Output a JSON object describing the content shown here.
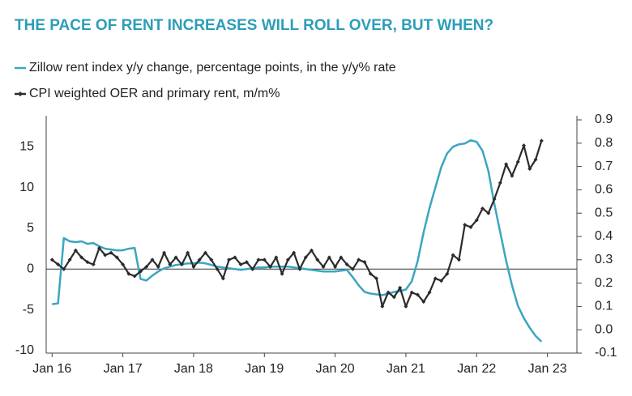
{
  "chart_data": {
    "type": "line",
    "title": "THE PACE OF RENT INCREASES WILL ROLL OVER, BUT WHEN?",
    "x": [
      "2016-01",
      "2016-02",
      "2016-03",
      "2016-04",
      "2016-05",
      "2016-06",
      "2016-07",
      "2016-08",
      "2016-09",
      "2016-10",
      "2016-11",
      "2016-12",
      "2017-01",
      "2017-02",
      "2017-03",
      "2017-04",
      "2017-05",
      "2017-06",
      "2017-07",
      "2017-08",
      "2017-09",
      "2017-10",
      "2017-11",
      "2017-12",
      "2018-01",
      "2018-02",
      "2018-03",
      "2018-04",
      "2018-05",
      "2018-06",
      "2018-07",
      "2018-08",
      "2018-09",
      "2018-10",
      "2018-11",
      "2018-12",
      "2019-01",
      "2019-02",
      "2019-03",
      "2019-04",
      "2019-05",
      "2019-06",
      "2019-07",
      "2019-08",
      "2019-09",
      "2019-10",
      "2019-11",
      "2019-12",
      "2020-01",
      "2020-02",
      "2020-03",
      "2020-04",
      "2020-05",
      "2020-06",
      "2020-07",
      "2020-08",
      "2020-09",
      "2020-10",
      "2020-11",
      "2020-12",
      "2021-01",
      "2021-02",
      "2021-03",
      "2021-04",
      "2021-05",
      "2021-06",
      "2021-07",
      "2021-08",
      "2021-09",
      "2021-10",
      "2021-11",
      "2021-12",
      "2022-01",
      "2022-02",
      "2022-03",
      "2022-04",
      "2022-05",
      "2022-06",
      "2022-07",
      "2022-08",
      "2022-09",
      "2022-10",
      "2022-11",
      "2022-12"
    ],
    "series": [
      {
        "name": "Zillow rent index y/y change, percentage points, in the y/y% rate",
        "color": "#3aa6c0",
        "axis": "y",
        "values": [
          -4.3,
          -4.2,
          3.8,
          3.4,
          3.3,
          3.4,
          3.1,
          3.2,
          2.8,
          2.5,
          2.4,
          2.3,
          2.3,
          2.5,
          2.6,
          -1.2,
          -1.4,
          -0.8,
          -0.3,
          0.1,
          0.3,
          0.5,
          0.6,
          0.7,
          0.7,
          0.8,
          0.7,
          0.5,
          0.3,
          0.2,
          0.1,
          0.0,
          -0.1,
          0.0,
          0.1,
          0.2,
          0.2,
          0.3,
          0.3,
          0.3,
          0.3,
          0.2,
          0.1,
          0.0,
          -0.1,
          -0.2,
          -0.3,
          -0.3,
          -0.3,
          -0.2,
          -0.1,
          -1.0,
          -2.0,
          -2.8,
          -3.0,
          -3.1,
          -3.2,
          -3.0,
          -2.8,
          -2.7,
          -2.5,
          -1.5,
          1.0,
          4.5,
          7.5,
          10.0,
          12.5,
          14.2,
          15.0,
          15.3,
          15.4,
          15.8,
          15.6,
          14.5,
          12.0,
          8.0,
          4.5,
          1.0,
          -2.0,
          -4.5,
          -6.0,
          -7.2,
          -8.2,
          -8.9
        ]
      },
      {
        "name": "CPI weighted OER and primary rent, m/m%",
        "color": "#2b2b2b",
        "axis": "y2",
        "values": [
          0.3,
          0.28,
          0.26,
          0.3,
          0.34,
          0.31,
          0.29,
          0.28,
          0.35,
          0.32,
          0.33,
          0.31,
          0.28,
          0.24,
          0.23,
          0.25,
          0.27,
          0.3,
          0.27,
          0.33,
          0.28,
          0.31,
          0.28,
          0.33,
          0.27,
          0.3,
          0.33,
          0.3,
          0.26,
          0.22,
          0.3,
          0.31,
          0.28,
          0.29,
          0.26,
          0.3,
          0.3,
          0.27,
          0.31,
          0.24,
          0.3,
          0.33,
          0.26,
          0.31,
          0.34,
          0.3,
          0.27,
          0.31,
          0.27,
          0.31,
          0.28,
          0.26,
          0.3,
          0.29,
          0.24,
          0.22,
          0.1,
          0.16,
          0.14,
          0.18,
          0.1,
          0.16,
          0.15,
          0.12,
          0.16,
          0.22,
          0.21,
          0.24,
          0.32,
          0.3,
          0.45,
          0.44,
          0.47,
          0.52,
          0.5,
          0.56,
          0.63,
          0.71,
          0.66,
          0.72,
          0.79,
          0.69,
          0.73,
          0.81
        ]
      }
    ],
    "xlim": [
      "2015-12",
      "2023-06"
    ],
    "xticks": [
      {
        "value": "2016-01",
        "label": "Jan 16"
      },
      {
        "value": "2017-01",
        "label": "Jan 17"
      },
      {
        "value": "2018-01",
        "label": "Jan 18"
      },
      {
        "value": "2019-01",
        "label": "Jan 19"
      },
      {
        "value": "2020-01",
        "label": "Jan 20"
      },
      {
        "value": "2021-01",
        "label": "Jan 21"
      },
      {
        "value": "2022-01",
        "label": "Jan 22"
      },
      {
        "value": "2023-01",
        "label": "Jan 23"
      }
    ],
    "ylim": [
      -10.3,
      18.3
    ],
    "yticks": [
      -10,
      -5,
      0,
      5,
      10,
      15
    ],
    "y2lim": [
      -0.1,
      0.9
    ],
    "y2ticks": [
      -0.1,
      {
        "value": 0,
        "label": "0.0"
      },
      0.1,
      0.2,
      0.3,
      0.4,
      0.5,
      0.6,
      0.7,
      0.8,
      0.9
    ],
    "zero_line": true
  }
}
